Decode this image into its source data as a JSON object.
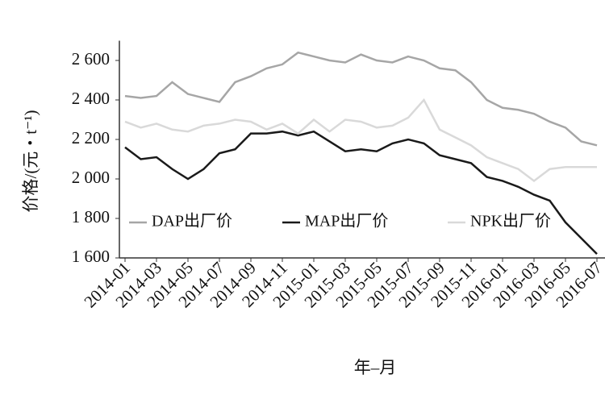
{
  "chart_data": {
    "type": "line",
    "y_label": "价格/(元・t⁻¹)",
    "x_label": "年–月",
    "categories": [
      "2014-01",
      null,
      "2014-03",
      null,
      "2014-05",
      null,
      "2014-07",
      null,
      "2014-09",
      null,
      "2014-11",
      null,
      "2015-01",
      null,
      "2015-03",
      null,
      "2015-05",
      null,
      "2015-07",
      null,
      "2015-09",
      null,
      "2015-11",
      null,
      "2016-01",
      null,
      "2016-03",
      null,
      "2016-05",
      null,
      "2016-07"
    ],
    "series": [
      {
        "name": "DAP出厂价",
        "color": "#a6a6a6",
        "values": [
          2420,
          2410,
          2420,
          2490,
          2430,
          2410,
          2390,
          2490,
          2520,
          2560,
          2580,
          2640,
          2620,
          2600,
          2590,
          2630,
          2600,
          2590,
          2620,
          2600,
          2560,
          2550,
          2490,
          2400,
          2360,
          2350,
          2330,
          2290,
          2260,
          2190,
          2170
        ]
      },
      {
        "name": "MAP出厂价",
        "color": "#1a1a1a",
        "values": [
          2160,
          2100,
          2110,
          2050,
          2000,
          2050,
          2130,
          2150,
          2230,
          2230,
          2240,
          2220,
          2240,
          2190,
          2140,
          2150,
          2140,
          2180,
          2200,
          2180,
          2120,
          2100,
          2080,
          2010,
          1990,
          1960,
          1920,
          1890,
          1780,
          1700,
          1620
        ]
      },
      {
        "name": "NPK出厂价",
        "color": "#d9d9d9",
        "values": [
          2290,
          2260,
          2280,
          2250,
          2240,
          2270,
          2280,
          2300,
          2290,
          2250,
          2280,
          2230,
          2300,
          2240,
          2300,
          2290,
          2260,
          2270,
          2310,
          2400,
          2250,
          2210,
          2170,
          2110,
          2080,
          2050,
          1990,
          2050,
          2060,
          2060,
          2060
        ]
      }
    ],
    "ylim": [
      1600,
      2700
    ],
    "yticks": [
      {
        "value": 1600,
        "label": "1 600"
      },
      {
        "value": 1800,
        "label": "1 800"
      },
      {
        "value": 2000,
        "label": "2 000"
      },
      {
        "value": 2200,
        "label": "2 200"
      },
      {
        "value": 2400,
        "label": "2 400"
      },
      {
        "value": 2600,
        "label": "2 600"
      }
    ]
  }
}
